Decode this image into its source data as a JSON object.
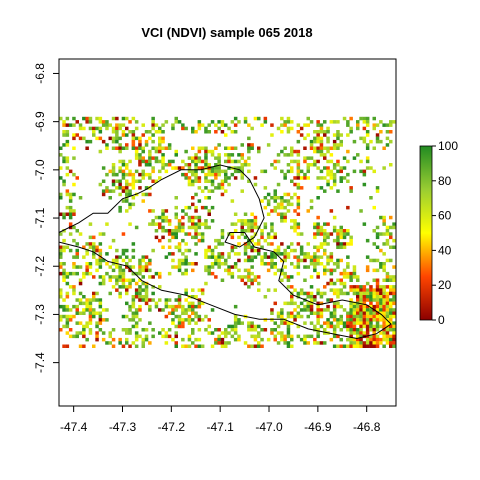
{
  "chart_data": {
    "type": "heatmap",
    "title": "VCI (NDVI) sample 065 2018",
    "xlabel": "",
    "ylabel": "",
    "xlim": [
      -47.43,
      -46.74
    ],
    "ylim": [
      -7.49,
      -6.77
    ],
    "x_ticks": [
      -47.4,
      -47.3,
      -47.2,
      -47.1,
      -47.0,
      -46.9,
      -46.8
    ],
    "x_tick_labels": [
      "-47.4",
      "-47.3",
      "-47.2",
      "-47.1",
      "-47.0",
      "-46.9",
      "-46.8"
    ],
    "y_ticks": [
      -6.8,
      -6.9,
      -7.0,
      -7.1,
      -7.2,
      -7.3,
      -7.4
    ],
    "y_tick_labels": [
      "-6.8",
      "-6.9",
      "-7.0",
      "-7.1",
      "-7.2",
      "-7.3",
      "-7.4"
    ],
    "raster_extent": {
      "lon": [
        -47.43,
        -46.74
      ],
      "lat": [
        -7.37,
        -6.89
      ]
    },
    "value_range": [
      0,
      100
    ],
    "colorbar": {
      "ticks": [
        0,
        20,
        40,
        60,
        80,
        100
      ],
      "tick_labels": [
        "0",
        "20",
        "40",
        "60",
        "80",
        "100"
      ],
      "colors": [
        "#8b0000",
        "#ff4500",
        "#ffff00",
        "#9acd32",
        "#228b22"
      ]
    },
    "grid": false,
    "legend": "right",
    "boundary_outline_color": "#000000",
    "boundary_outline": [
      [
        -47.43,
        -7.13
      ],
      [
        -47.39,
        -7.11
      ],
      [
        -47.36,
        -7.09
      ],
      [
        -47.33,
        -7.09
      ],
      [
        -47.3,
        -7.06
      ],
      [
        -47.27,
        -7.05
      ],
      [
        -47.25,
        -7.04
      ],
      [
        -47.22,
        -7.02
      ],
      [
        -47.18,
        -7.0
      ],
      [
        -47.14,
        -7.0
      ],
      [
        -47.1,
        -6.99
      ],
      [
        -47.06,
        -7.0
      ],
      [
        -47.04,
        -7.02
      ],
      [
        -47.02,
        -7.06
      ],
      [
        -47.01,
        -7.1
      ],
      [
        -47.03,
        -7.14
      ],
      [
        -47.06,
        -7.16
      ],
      [
        -47.09,
        -7.15
      ],
      [
        -47.08,
        -7.13
      ],
      [
        -47.05,
        -7.13
      ],
      [
        -47.03,
        -7.16
      ],
      [
        -46.99,
        -7.17
      ],
      [
        -46.97,
        -7.19
      ],
      [
        -46.98,
        -7.23
      ],
      [
        -46.95,
        -7.26
      ],
      [
        -46.9,
        -7.28
      ],
      [
        -46.85,
        -7.27
      ],
      [
        -46.8,
        -7.28
      ],
      [
        -46.77,
        -7.3
      ],
      [
        -46.75,
        -7.32
      ],
      [
        -46.78,
        -7.34
      ],
      [
        -46.82,
        -7.35
      ],
      [
        -46.87,
        -7.34
      ],
      [
        -46.92,
        -7.33
      ],
      [
        -46.97,
        -7.31
      ],
      [
        -47.02,
        -7.31
      ],
      [
        -47.07,
        -7.3
      ],
      [
        -47.12,
        -7.28
      ],
      [
        -47.17,
        -7.26
      ],
      [
        -47.22,
        -7.25
      ],
      [
        -47.26,
        -7.23
      ],
      [
        -47.29,
        -7.2
      ],
      [
        -47.33,
        -7.19
      ],
      [
        -47.36,
        -7.17
      ],
      [
        -47.39,
        -7.16
      ],
      [
        -47.43,
        -7.15
      ]
    ]
  }
}
